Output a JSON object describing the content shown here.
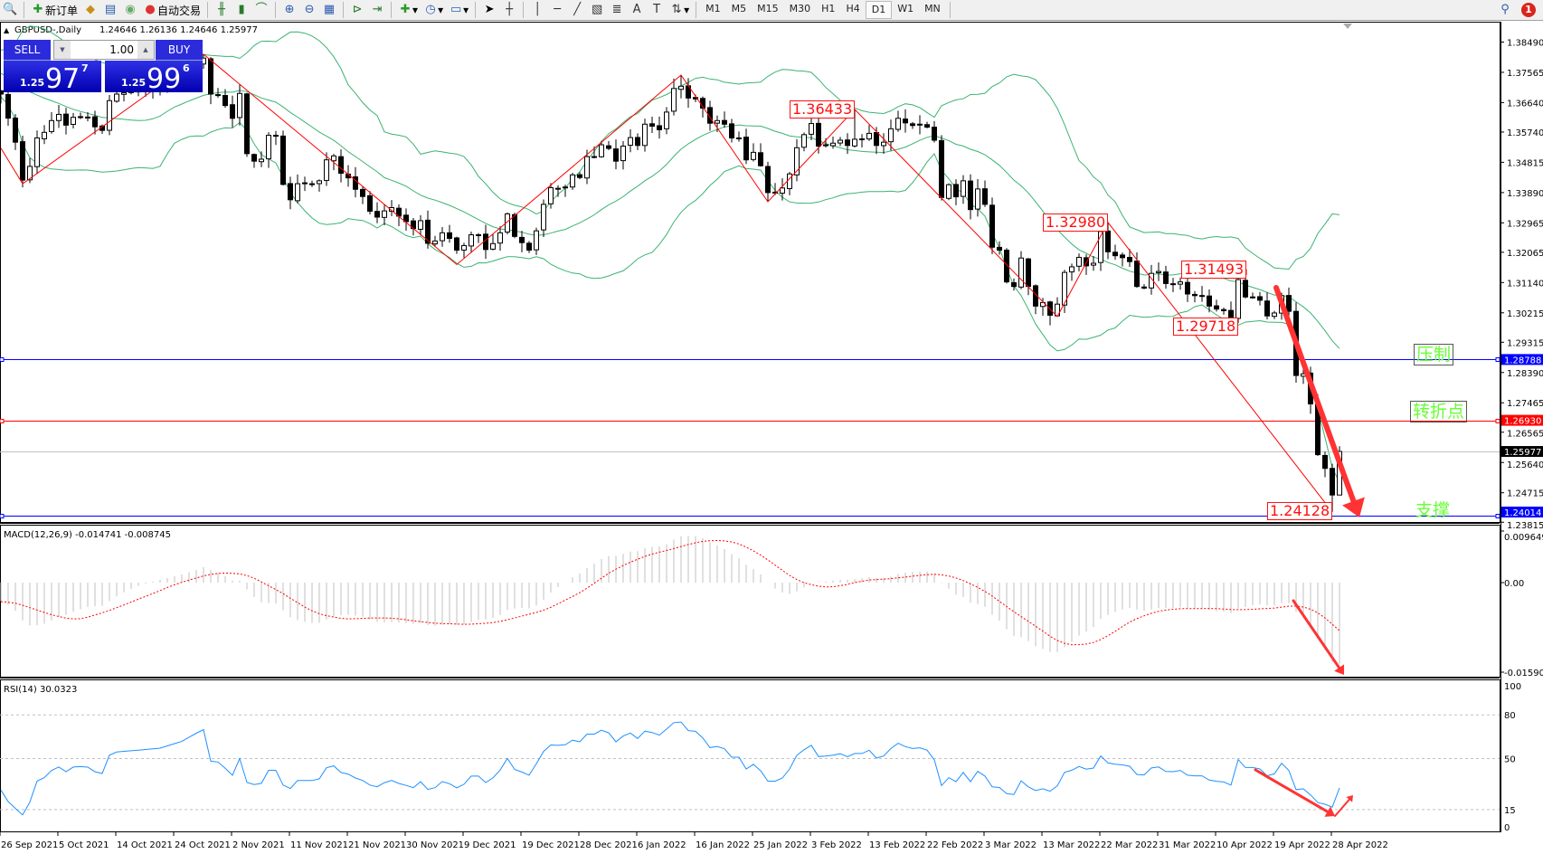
{
  "toolbar": {
    "new_order_label": "新订单",
    "auto_trade_label": "自动交易",
    "timeframes": [
      "M1",
      "M5",
      "M15",
      "M30",
      "H1",
      "H4",
      "D1",
      "W1",
      "MN"
    ],
    "active_timeframe": "D1",
    "notification_count": "1"
  },
  "chart_header": {
    "symbol_period": "GBPUSD-,Daily",
    "ohlc": "1.24646 1.26136 1.24646 1.25977"
  },
  "trade_panel": {
    "sell_label": "SELL",
    "buy_label": "BUY",
    "lot": "1.00",
    "sell_prefix": "1.25",
    "sell_big": "97",
    "sell_sup": "7",
    "buy_prefix": "1.25",
    "buy_big": "99",
    "buy_sup": "6"
  },
  "levels": [
    {
      "price": 1.28788,
      "label": "1.28788",
      "color": "#0000ff",
      "note": "压制",
      "boxed": true
    },
    {
      "price": 1.2693,
      "label": "1.26930",
      "color": "#ff0000",
      "note": "转折点",
      "boxed": true
    },
    {
      "price": 1.24014,
      "label": "1.24014",
      "color": "#0000ff",
      "note": "支撑",
      "boxed": false
    }
  ],
  "current_price": {
    "price": 1.25977,
    "label": "1.25977"
  },
  "zigzag_labels": [
    "1.36433",
    "1.32980",
    "1.31493",
    "1.29718",
    "1.24128"
  ],
  "price_axis": [
    "1.38490",
    "1.37565",
    "1.36640",
    "1.35740",
    "1.34815",
    "1.33890",
    "1.32965",
    "1.32065",
    "1.31140",
    "1.30215",
    "1.29315",
    "1.28390",
    "1.27465",
    "1.26565",
    "1.25640",
    "1.24715",
    "1.23815"
  ],
  "date_axis": [
    "26 Sep 2021",
    "5 Oct 2021",
    "14 Oct 2021",
    "24 Oct 2021",
    "2 Nov 2021",
    "11 Nov 2021",
    "21 Nov 2021",
    "30 Nov 2021",
    "9 Dec 2021",
    "19 Dec 2021",
    "28 Dec 2021",
    "6 Jan 2022",
    "16 Jan 2022",
    "25 Jan 2022",
    "3 Feb 2022",
    "13 Feb 2022",
    "22 Feb 2022",
    "3 Mar 2022",
    "13 Mar 2022",
    "22 Mar 2022",
    "31 Mar 2022",
    "10 Apr 2022",
    "19 Apr 2022",
    "28 Apr 2022"
  ],
  "macd": {
    "header": "MACD(12,26,9) -0.014741 -0.008745",
    "axis": [
      "0.009649",
      "0.00",
      "-0.015903"
    ],
    "range": [
      -0.015903,
      0.009649
    ],
    "colors": {
      "histogram": "#c0c0c0",
      "signal": "#ff0000"
    }
  },
  "rsi": {
    "header": "RSI(14) 30.0323",
    "axis": [
      "100",
      "80",
      "50",
      "15",
      "0"
    ],
    "levels": [
      80,
      50,
      15
    ],
    "color": "#1e90ff"
  },
  "chart_data": {
    "type": "candlestick",
    "symbol": "GBPUSD",
    "timeframe": "Daily",
    "ylim": [
      1.23815,
      1.3849
    ],
    "bollinger": {
      "period": 20,
      "deviation": 2,
      "color": "#3cb371"
    },
    "last_bar": {
      "open": 1.24646,
      "high": 1.26136,
      "low": 1.24646,
      "close": 1.25977
    },
    "closes": [
      [
        0,
        1.369
      ],
      [
        2,
        1.3543
      ],
      [
        3,
        1.3427
      ],
      [
        4,
        1.3469
      ],
      [
        5,
        1.3556
      ],
      [
        6,
        1.3573
      ],
      [
        7,
        1.3609
      ],
      [
        8,
        1.3628
      ],
      [
        9,
        1.3595
      ],
      [
        10,
        1.3619
      ],
      [
        11,
        1.3621
      ],
      [
        12,
        1.3618
      ],
      [
        13,
        1.359
      ],
      [
        14,
        1.3579
      ],
      [
        15,
        1.367
      ],
      [
        16,
        1.369
      ],
      [
        17,
        1.3694
      ],
      [
        22,
        1.371
      ],
      [
        25,
        1.374
      ],
      [
        28,
        1.38
      ],
      [
        29,
        1.369
      ],
      [
        30,
        1.3686
      ],
      [
        31,
        1.3655
      ],
      [
        32,
        1.3616
      ],
      [
        33,
        1.3692
      ],
      [
        34,
        1.3508
      ],
      [
        35,
        1.3485
      ],
      [
        36,
        1.3491
      ],
      [
        37,
        1.3564
      ],
      [
        38,
        1.3564
      ],
      [
        39,
        1.3414
      ],
      [
        40,
        1.3367
      ],
      [
        41,
        1.3416
      ],
      [
        42,
        1.3416
      ],
      [
        43,
        1.3416
      ],
      [
        44,
        1.3425
      ],
      [
        45,
        1.3489
      ],
      [
        46,
        1.3501
      ],
      [
        47,
        1.3448
      ],
      [
        48,
        1.3434
      ],
      [
        49,
        1.3399
      ],
      [
        50,
        1.3377
      ],
      [
        51,
        1.3332
      ],
      [
        52,
        1.3314
      ],
      [
        53,
        1.3333
      ],
      [
        54,
        1.3343
      ],
      [
        55,
        1.3317
      ],
      [
        56,
        1.33
      ],
      [
        57,
        1.3279
      ],
      [
        58,
        1.3303
      ],
      [
        59,
        1.3234
      ],
      [
        60,
        1.3241
      ],
      [
        61,
        1.3266
      ],
      [
        62,
        1.3249
      ],
      [
        63,
        1.3213
      ],
      [
        64,
        1.3227
      ],
      [
        65,
        1.326
      ],
      [
        66,
        1.326
      ],
      [
        67,
        1.3215
      ],
      [
        68,
        1.3233
      ],
      [
        69,
        1.3266
      ],
      [
        70,
        1.3324
      ],
      [
        71,
        1.3255
      ],
      [
        72,
        1.3236
      ],
      [
        73,
        1.3213
      ],
      [
        74,
        1.3272
      ],
      [
        75,
        1.3353
      ],
      [
        76,
        1.3404
      ],
      [
        77,
        1.3402
      ],
      [
        78,
        1.3406
      ],
      [
        79,
        1.3443
      ],
      [
        80,
        1.3435
      ],
      [
        81,
        1.3499
      ],
      [
        82,
        1.3499
      ],
      [
        83,
        1.3535
      ],
      [
        84,
        1.3524
      ],
      [
        85,
        1.3485
      ],
      [
        86,
        1.3531
      ],
      [
        87,
        1.3557
      ],
      [
        88,
        1.3533
      ],
      [
        89,
        1.3598
      ],
      [
        90,
        1.3592
      ],
      [
        91,
        1.3581
      ],
      [
        92,
        1.3635
      ],
      [
        93,
        1.3707
      ],
      [
        94,
        1.3714
      ],
      [
        95,
        1.3678
      ],
      [
        96,
        1.3675
      ],
      [
        97,
        1.3647
      ],
      [
        98,
        1.3601
      ],
      [
        99,
        1.3609
      ],
      [
        100,
        1.3598
      ],
      [
        101,
        1.3556
      ],
      [
        102,
        1.3556
      ],
      [
        103,
        1.3489
      ],
      [
        104,
        1.3512
      ],
      [
        105,
        1.3471
      ],
      [
        106,
        1.3389
      ],
      [
        107,
        1.3389
      ],
      [
        108,
        1.3403
      ],
      [
        109,
        1.3446
      ],
      [
        110,
        1.3526
      ],
      [
        111,
        1.3566
      ],
      [
        112,
        1.36
      ],
      [
        113,
        1.3531
      ],
      [
        114,
        1.3535
      ],
      [
        115,
        1.354
      ],
      [
        116,
        1.3549
      ],
      [
        117,
        1.3533
      ],
      [
        118,
        1.3552
      ],
      [
        119,
        1.3552
      ],
      [
        120,
        1.357
      ],
      [
        121,
        1.3533
      ],
      [
        122,
        1.3543
      ],
      [
        123,
        1.3584
      ],
      [
        124,
        1.3616
      ],
      [
        125,
        1.3602
      ],
      [
        126,
        1.3594
      ],
      [
        127,
        1.3598
      ],
      [
        128,
        1.3589
      ],
      [
        129,
        1.3549
      ],
      [
        130,
        1.3374
      ],
      [
        131,
        1.3413
      ],
      [
        132,
        1.3376
      ],
      [
        133,
        1.3425
      ],
      [
        134,
        1.3337
      ],
      [
        135,
        1.34
      ],
      [
        136,
        1.3353
      ],
      [
        137,
        1.3222
      ],
      [
        138,
        1.3213
      ],
      [
        139,
        1.3116
      ],
      [
        140,
        1.3102
      ],
      [
        141,
        1.3189
      ],
      [
        142,
        1.3102
      ],
      [
        143,
        1.3042
      ],
      [
        144,
        1.3053
      ],
      [
        145,
        1.3014
      ],
      [
        146,
        1.3048
      ],
      [
        147,
        1.3145
      ],
      [
        148,
        1.3162
      ],
      [
        149,
        1.3191
      ],
      [
        150,
        1.3165
      ],
      [
        151,
        1.3173
      ],
      [
        152,
        1.327
      ],
      [
        153,
        1.3208
      ],
      [
        154,
        1.3196
      ],
      [
        155,
        1.319
      ],
      [
        156,
        1.3178
      ],
      [
        157,
        1.3102
      ],
      [
        158,
        1.3097
      ],
      [
        159,
        1.3142
      ],
      [
        160,
        1.3148
      ],
      [
        161,
        1.3111
      ],
      [
        162,
        1.3109
      ],
      [
        163,
        1.3116
      ],
      [
        164,
        1.3079
      ],
      [
        165,
        1.3074
      ],
      [
        166,
        1.3074
      ],
      [
        167,
        1.3042
      ],
      [
        168,
        1.3033
      ],
      [
        169,
        1.3028
      ],
      [
        170,
        1.3005
      ],
      [
        171,
        1.3123
      ],
      [
        172,
        1.307
      ],
      [
        173,
        1.307
      ],
      [
        174,
        1.306
      ],
      [
        175,
        1.3012
      ],
      [
        176,
        1.3021
      ],
      [
        177,
        1.3074
      ],
      [
        178,
        1.3026
      ],
      [
        179,
        1.283
      ],
      [
        180,
        1.2835
      ],
      [
        181,
        1.2743
      ],
      [
        182,
        1.2588
      ],
      [
        183,
        1.2546
      ],
      [
        184,
        1.24646
      ],
      [
        185,
        1.25977
      ]
    ],
    "extremes": [
      {
        "bar": 28,
        "high": 1.3812
      },
      {
        "bar": 94,
        "high": 1.3748
      },
      {
        "bar": 106,
        "low": 1.3361
      },
      {
        "bar": 118,
        "high": 1.36433
      },
      {
        "bar": 146,
        "low": 1.301
      },
      {
        "bar": 153,
        "high": 1.3298
      },
      {
        "bar": 170,
        "low": 1.29718
      },
      {
        "bar": 171,
        "high": 1.31493
      },
      {
        "bar": 184,
        "low": 1.24128
      }
    ],
    "zigzag": [
      [
        0,
        1.3525
      ],
      [
        3,
        1.3416
      ],
      [
        28,
        1.3812
      ],
      [
        63,
        1.3169
      ],
      [
        94,
        1.3748
      ],
      [
        106,
        1.3361
      ],
      [
        118,
        1.36433
      ],
      [
        146,
        1.301
      ],
      [
        153,
        1.3298
      ],
      [
        184,
        1.24128
      ]
    ],
    "zigzag_color": "#ff0000"
  }
}
